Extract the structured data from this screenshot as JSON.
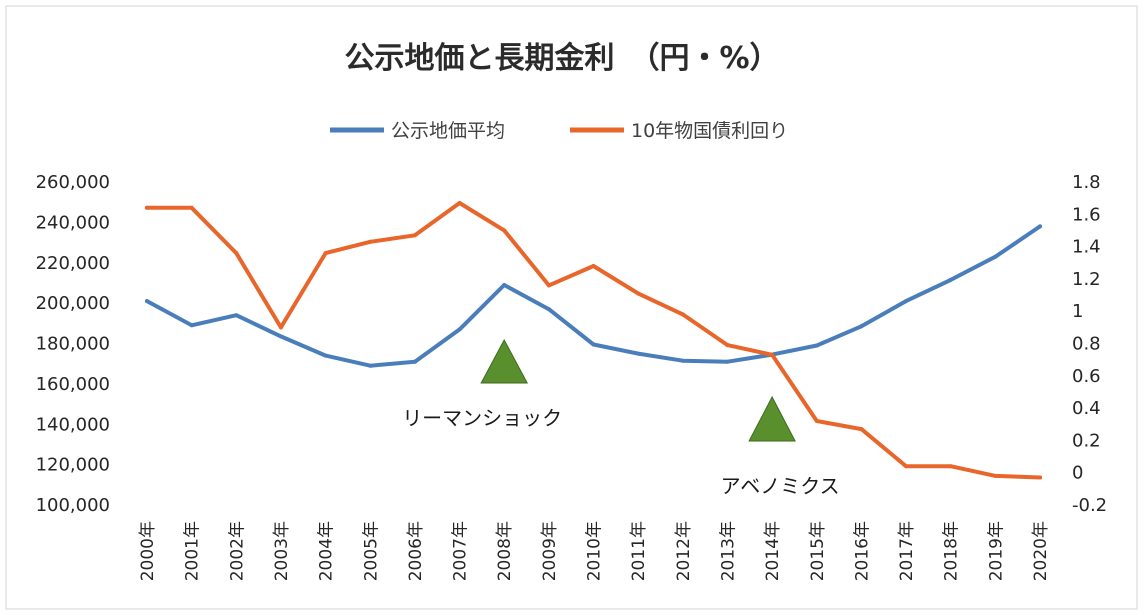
{
  "chart_data": {
    "type": "line",
    "title": "公示地価と長期金利　（円・%）",
    "categories": [
      "2000年",
      "2001年",
      "2002年",
      "2003年",
      "2004年",
      "2005年",
      "2006年",
      "2007年",
      "2008年",
      "2009年",
      "2010年",
      "2011年",
      "2012年",
      "2013年",
      "2014年",
      "2015年",
      "2016年",
      "2017年",
      "2018年",
      "2019年",
      "2020年"
    ],
    "series": [
      {
        "name": "公示地価平均",
        "axis": "left",
        "color": "#4a7ebb",
        "values": [
          201000,
          189000,
          194000,
          183500,
          174000,
          169000,
          171000,
          187000,
          209000,
          197000,
          179500,
          175000,
          171500,
          171000,
          174500,
          179000,
          188500,
          201000,
          211500,
          223000,
          238000
        ]
      },
      {
        "name": "10年物国債利回り",
        "axis": "right",
        "color": "#e8662a",
        "values": [
          1.64,
          1.64,
          1.36,
          0.9,
          1.36,
          1.43,
          1.47,
          1.67,
          1.5,
          1.16,
          1.28,
          1.11,
          0.98,
          0.79,
          0.73,
          0.32,
          0.27,
          0.04,
          0.04,
          -0.02,
          -0.03
        ]
      }
    ],
    "y_left": {
      "min": 100000,
      "max": 260000,
      "ticks": [
        "260,000",
        "240,000",
        "220,000",
        "200,000",
        "180,000",
        "160,000",
        "140,000",
        "120,000",
        "100,000"
      ]
    },
    "y_right": {
      "min": -0.2,
      "max": 1.8,
      "ticks": [
        "1.8",
        "1.6",
        "1.4",
        "1.2",
        "1",
        "0.8",
        "0.6",
        "0.4",
        "0.2",
        "0",
        "-0.2"
      ]
    },
    "grid": false,
    "legend_position": "top-center",
    "annotations": [
      {
        "label": "リーマンショック",
        "category": "2008年",
        "marker": "triangle",
        "marker_color": "#5a8f2e"
      },
      {
        "label": "アベノミクス",
        "category": "2014年",
        "marker": "triangle",
        "marker_color": "#5a8f2e"
      }
    ]
  }
}
